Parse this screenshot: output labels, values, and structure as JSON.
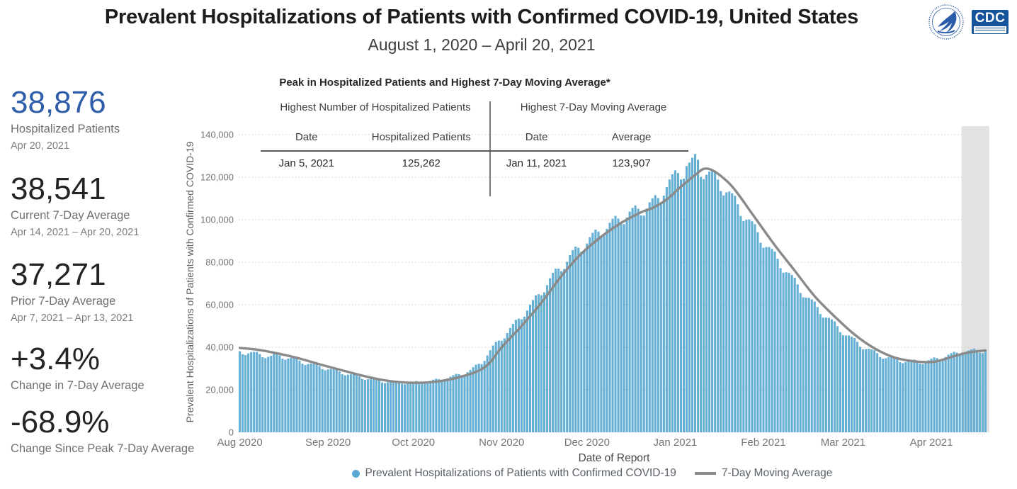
{
  "header": {
    "title": "Prevalent Hospitalizations of Patients with Confirmed COVID-19, United States",
    "subtitle": "August 1, 2020 – April 20, 2021",
    "cdc_label": "CDC",
    "hhs_logo": "us-department-of-health-and-human-services-seal"
  },
  "stats": [
    {
      "value": "38,876",
      "label": "Hospitalized Patients",
      "sublabel": "Apr 20, 2021",
      "color": "#2e5ea9"
    },
    {
      "value": "38,541",
      "label": "Current 7-Day Average",
      "sublabel": "Apr 14, 2021 – Apr 20, 2021",
      "color": "#252423"
    },
    {
      "value": "37,271",
      "label": "Prior 7-Day Average",
      "sublabel": "Apr 7, 2021 – Apr 13, 2021",
      "color": "#252423"
    },
    {
      "value": "+3.4%",
      "label": "Change in 7-Day Average",
      "sublabel": "",
      "color": "#252423"
    },
    {
      "value": "-68.9%",
      "label": "Change Since Peak 7-Day Average",
      "sublabel": "",
      "color": "#252423"
    }
  ],
  "peak_table": {
    "title": "Peak in Hospitalized Patients and Highest 7-Day Moving Average*",
    "left": {
      "header": "Highest Number of Hospitalized Patients",
      "col_date": "Date",
      "col_value": "Hospitalized Patients",
      "date": "Jan 5, 2021",
      "value": "125,262"
    },
    "right": {
      "header": "Highest 7-Day Moving Average",
      "col_date": "Date",
      "col_value": "Average",
      "date": "Jan 11, 2021",
      "value": "123,907"
    }
  },
  "chart_data": {
    "type": "bar",
    "title": "",
    "xlabel": "Date of Report",
    "ylabel": "Prevalent Hospitalizations of Patients with Confirmed COVID-19",
    "x_start": "2020-08-01",
    "x_end": "2021-04-20",
    "n_days": 263,
    "ylim": [
      0,
      140000
    ],
    "ytick_step": 20000,
    "ytick_labels": [
      "0",
      "20,000",
      "40,000",
      "60,000",
      "80,000",
      "100,000",
      "120,000",
      "140,000"
    ],
    "months": [
      {
        "label": "Aug 2020",
        "day": 0
      },
      {
        "label": "Sep 2020",
        "day": 31
      },
      {
        "label": "Oct 2020",
        "day": 61
      },
      {
        "label": "Nov 2020",
        "day": 92
      },
      {
        "label": "Dec 2020",
        "day": 122
      },
      {
        "label": "Jan 2021",
        "day": 153
      },
      {
        "label": "Feb 2021",
        "day": 184
      },
      {
        "label": "Mar 2021",
        "day": 212
      },
      {
        "label": "Apr 2021",
        "day": 243
      }
    ],
    "grid": "horizontal-dotted",
    "legend_position": "bottom-center",
    "legend": [
      {
        "label": "Prevalent Hospitalizations of Patients with Confirmed COVID-19",
        "swatch": "dot",
        "color": "#5ba8d2"
      },
      {
        "label": "7-Day Moving Average",
        "swatch": "line",
        "color": "#8a8a8a"
      }
    ],
    "series": [
      {
        "name": "Prevalent Hospitalizations of Patients with Confirmed COVID-19",
        "type": "bar",
        "color": "#65afd5"
      },
      {
        "name": "7-Day Moving Average",
        "type": "line",
        "color": "#8a8a8a"
      }
    ],
    "moving_average_anchors_day_value": [
      [
        0,
        39700
      ],
      [
        3,
        39300
      ],
      [
        7,
        38700
      ],
      [
        14,
        36900
      ],
      [
        21,
        34700
      ],
      [
        28,
        32000
      ],
      [
        35,
        29500
      ],
      [
        42,
        27000
      ],
      [
        49,
        24900
      ],
      [
        56,
        23600
      ],
      [
        63,
        23300
      ],
      [
        70,
        24000
      ],
      [
        77,
        25900
      ],
      [
        84,
        29000
      ],
      [
        88,
        33000
      ],
      [
        92,
        40000
      ],
      [
        99,
        50000
      ],
      [
        106,
        61000
      ],
      [
        113,
        73500
      ],
      [
        120,
        84000
      ],
      [
        127,
        92000
      ],
      [
        134,
        98500
      ],
      [
        141,
        103500
      ],
      [
        145,
        105500
      ],
      [
        150,
        109500
      ],
      [
        155,
        115500
      ],
      [
        160,
        121000
      ],
      [
        163,
        123907
      ],
      [
        166,
        123300
      ],
      [
        170,
        119500
      ],
      [
        174,
        114000
      ],
      [
        181,
        101000
      ],
      [
        188,
        88000
      ],
      [
        195,
        76000
      ],
      [
        202,
        64000
      ],
      [
        209,
        54500
      ],
      [
        216,
        46000
      ],
      [
        223,
        39500
      ],
      [
        230,
        35200
      ],
      [
        237,
        33400
      ],
      [
        244,
        33200
      ],
      [
        251,
        35800
      ],
      [
        255,
        37271
      ],
      [
        258,
        37900
      ],
      [
        262,
        38541
      ]
    ],
    "bars_model": {
      "from_line_shift_days": 3,
      "weekday_pct": [
        -2.8,
        -3.4,
        -1.0,
        1.0,
        2.0,
        2.6,
        0.6
      ],
      "start_weekday": 6,
      "adjust_windows": [
        {
          "start_day": 0,
          "end_day": 11,
          "pct": -3.5
        },
        {
          "start_day": 149,
          "end_day": 161,
          "pct": 3.0
        }
      ],
      "overrides": {
        "157": 125262,
        "262": 38876
      }
    },
    "notable_points": {
      "peak_bar": {
        "date": "Jan 5, 2021",
        "value": 125262
      },
      "peak_moving_average": {
        "date": "Jan 11, 2021",
        "value": 123907
      },
      "latest_bar": {
        "date": "Apr 20, 2021",
        "value": 38876
      }
    },
    "recent_band": {
      "start_day": 254,
      "end_day": 262,
      "color": "#e3e3e3"
    },
    "colors": {
      "grid": "#d6d6d6",
      "axis_text": "#767676"
    }
  }
}
